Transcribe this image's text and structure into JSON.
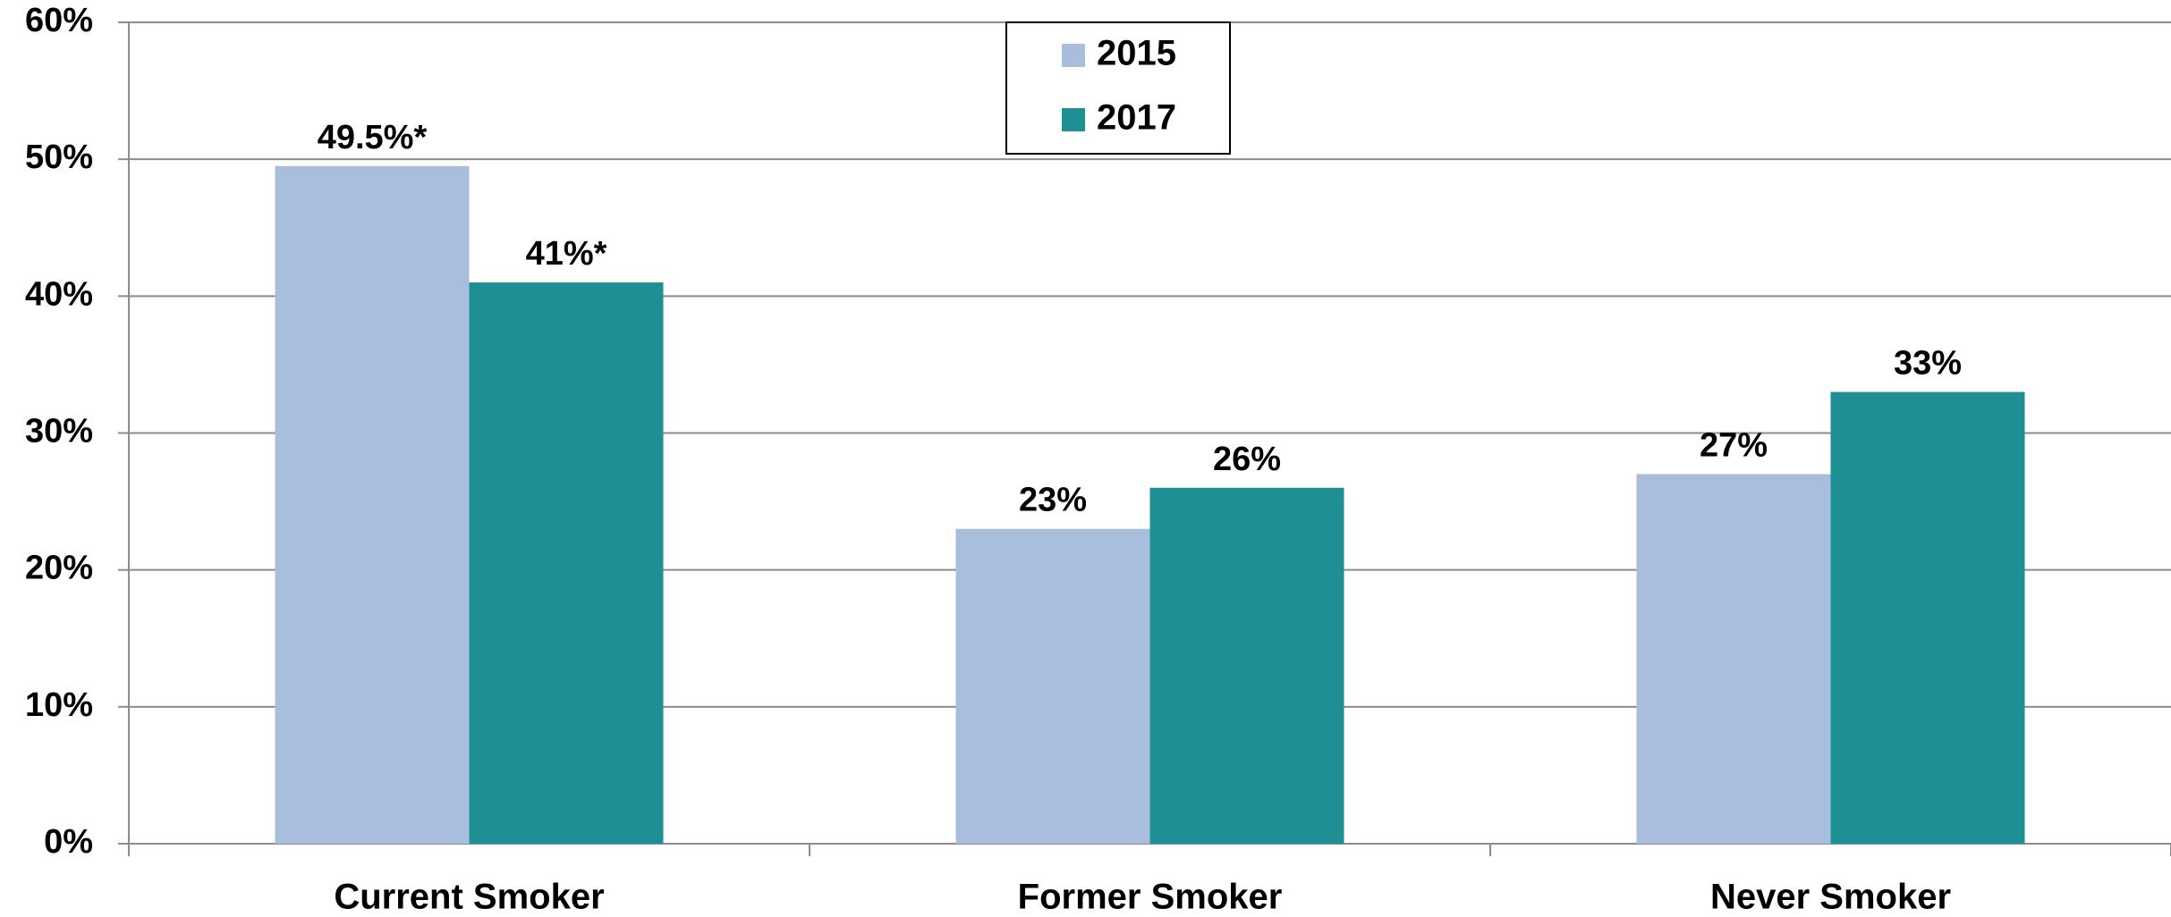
{
  "chart_data": {
    "type": "bar",
    "categories": [
      "Current Smoker",
      "Former Smoker",
      "Never Smoker"
    ],
    "series": [
      {
        "name": "2015",
        "color": "#a9bedd",
        "values": [
          49.5,
          23,
          27
        ],
        "value_labels": [
          "49.5%*",
          "23%",
          "27%"
        ]
      },
      {
        "name": "2017",
        "color": "#1f8f96",
        "values": [
          41,
          26,
          33
        ],
        "value_labels": [
          "41%*",
          "26%",
          "33%"
        ]
      }
    ],
    "ylim": [
      0,
      60
    ],
    "yticks": [
      {
        "value": 0,
        "label": "0%"
      },
      {
        "value": 10,
        "label": "10%"
      },
      {
        "value": 20,
        "label": "20%"
      },
      {
        "value": 30,
        "label": "30%"
      },
      {
        "value": 40,
        "label": "40%"
      },
      {
        "value": 50,
        "label": "50%"
      },
      {
        "value": 60,
        "label": "60%"
      }
    ],
    "grid": true,
    "legend": "top"
  }
}
